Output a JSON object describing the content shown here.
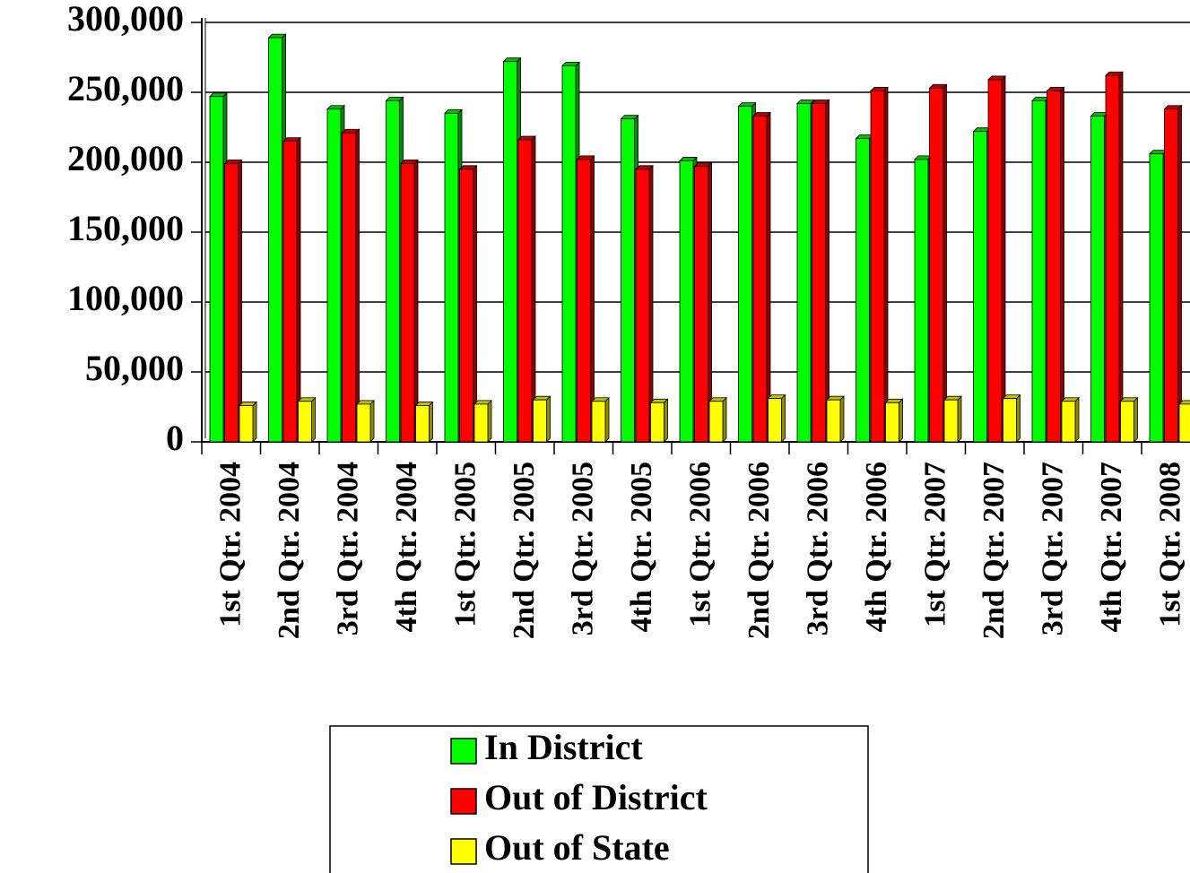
{
  "chart_data": {
    "type": "bar",
    "categories": [
      "1st Qtr. 2004",
      "2nd Qtr. 2004",
      "3rd Qtr. 2004",
      "4th Qtr. 2004",
      "1st Qtr. 2005",
      "2nd Qtr. 2005",
      "3rd Qtr. 2005",
      "4th Qtr. 2005",
      "1st Qtr. 2006",
      "2nd Qtr. 2006",
      "3rd Qtr. 2006",
      "4th Qtr. 2006",
      "1st Qtr. 2007",
      "2nd Qtr. 2007",
      "3rd Qtr. 2007",
      "4th Qtr. 2007",
      "1st Qtr. 2008"
    ],
    "series": [
      {
        "name": "In District",
        "color": "#00ff00",
        "values": [
          247000,
          289000,
          238000,
          244000,
          235000,
          272000,
          269000,
          231000,
          201000,
          240000,
          242000,
          217000,
          202000,
          222000,
          244000,
          233000,
          206000
        ]
      },
      {
        "name": "Out of District",
        "color": "#ff0000",
        "values": [
          199000,
          215000,
          221000,
          199000,
          195000,
          216000,
          202000,
          195000,
          197000,
          233000,
          242000,
          251000,
          253000,
          259000,
          251000,
          262000,
          238000
        ]
      },
      {
        "name": "Out of State",
        "color": "#ffff00",
        "values": [
          26000,
          29000,
          27000,
          26000,
          27000,
          30000,
          29000,
          28000,
          29000,
          31000,
          30000,
          28000,
          30000,
          31000,
          29000,
          29000,
          27000
        ]
      }
    ],
    "ylim": [
      0,
      300000
    ],
    "yticks": [
      {
        "value": 0,
        "label": "0"
      },
      {
        "value": 50000,
        "label": "50,000"
      },
      {
        "value": 100000,
        "label": "100,000"
      },
      {
        "value": 150000,
        "label": "150,000"
      },
      {
        "value": 200000,
        "label": "200,000"
      },
      {
        "value": 250000,
        "label": "250,000"
      },
      {
        "value": 300000,
        "label": "300,000"
      }
    ],
    "grid": true
  }
}
